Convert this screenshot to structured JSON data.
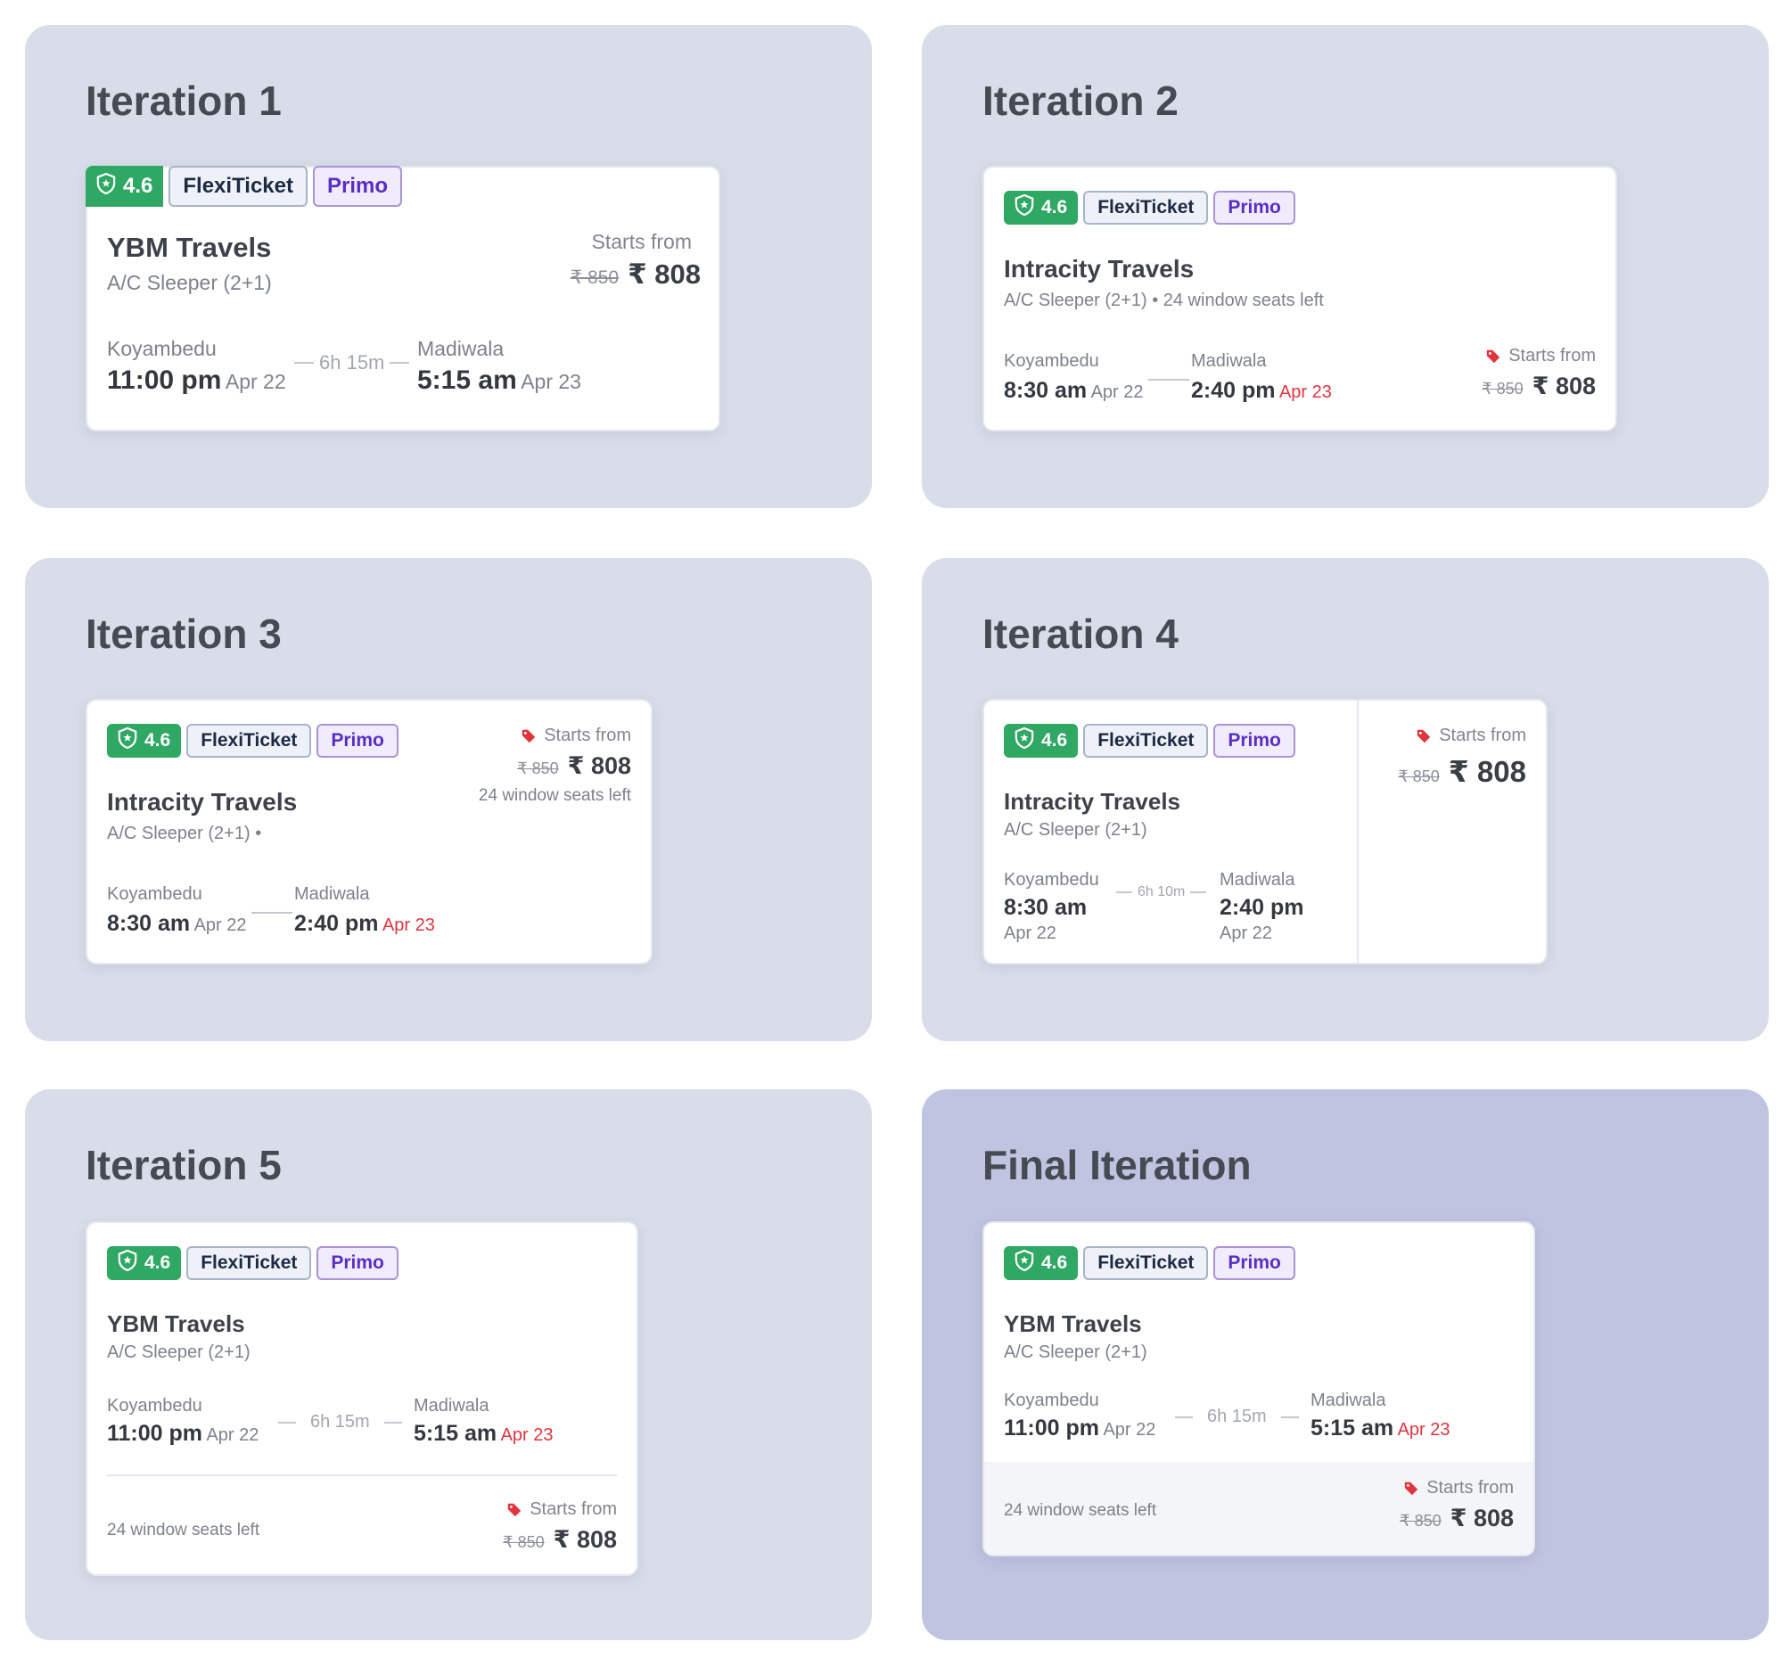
{
  "common": {
    "rating": "4.6",
    "flexi": "FlexiTicket",
    "primo": "Primo",
    "bus_type": "A/C Sleeper (2+1)",
    "origin": "Koyambedu",
    "destination": "Madiwala",
    "starts_from": "Starts from",
    "old_price": "₹ 850",
    "new_price": "₹ 808",
    "seats_left": "24 window seats left"
  },
  "panels": [
    {
      "title": "Iteration 1",
      "operator": "YBM Travels",
      "dep_time": "11:00 pm",
      "dep_date": "Apr 22",
      "duration": "6h 15m",
      "arr_time": "5:15 am",
      "arr_date": "Apr 23"
    },
    {
      "title": "Iteration 2",
      "operator": "Intracity Travels",
      "subtitle": "A/C Sleeper (2+1) • 24 window seats left",
      "dep_time": "8:30 am",
      "dep_date": "Apr 22",
      "arr_time": "2:40 pm",
      "arr_date": "Apr 23"
    },
    {
      "title": "Iteration 3",
      "operator": "Intracity Travels",
      "subtitle": "A/C Sleeper (2+1) •",
      "dep_time": "8:30 am",
      "dep_date": "Apr 22",
      "arr_time": "2:40 pm",
      "arr_date": "Apr 23"
    },
    {
      "title": "Iteration 4",
      "operator": "Intracity Travels",
      "dep_time": "8:30 am",
      "dep_date": "Apr 22",
      "duration": "6h 10m",
      "arr_time": "2:40 pm",
      "arr_date": "Apr 22"
    },
    {
      "title": "Iteration 5",
      "operator": "YBM Travels",
      "dep_time": "11:00 pm",
      "dep_date": "Apr 22",
      "duration": "6h 15m",
      "arr_time": "5:15 am",
      "arr_date": "Apr 23"
    },
    {
      "title": "Final Iteration",
      "operator": "YBM Travels",
      "dep_time": "11:00 pm",
      "dep_date": "Apr 22",
      "duration": "6h 15m",
      "arr_time": "5:15 am",
      "arr_date": "Apr 23"
    }
  ],
  "colors": {
    "panel_bg": "#d9dde9",
    "final_panel_bg": "#bfc4e0",
    "rating_green": "#2fa864",
    "primo_purple": "#5a2ec4",
    "alert_red": "#e0343f"
  },
  "icons": [
    "shield-star-icon",
    "price-tag-icon"
  ]
}
